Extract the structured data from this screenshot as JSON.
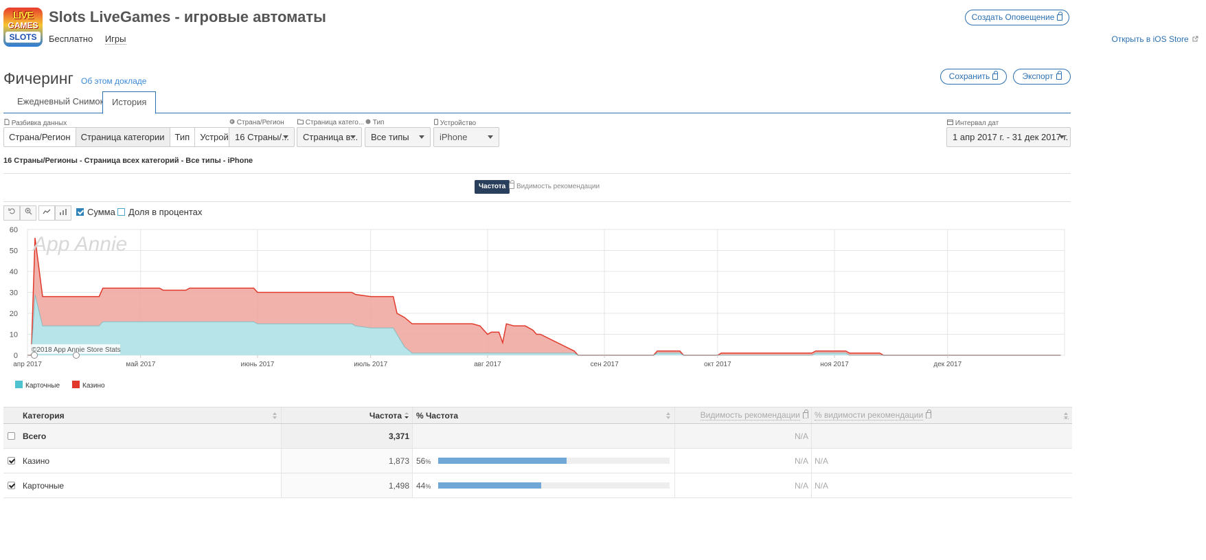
{
  "app": {
    "title": "Slots LiveGames - игровые автоматы",
    "price": "Бесплатно",
    "category": "Игры",
    "icon_top": "LIVE",
    "icon_mid": "GAMES",
    "icon_bottom": "SLOTS",
    "create_alert": "Создать Оповещение",
    "open_ios": "Открыть в iOS Store"
  },
  "section": {
    "title": "Фичеринг",
    "about": "Об этом докладе",
    "save": "Сохранить",
    "export": "Экспорт"
  },
  "tabs": [
    "Ежедневный Снимок",
    "История"
  ],
  "filters": {
    "breakdown_label": "Разбивка данных",
    "breakdown": [
      "Страна/Регион",
      "Страница категории",
      "Тип",
      "Устройство"
    ],
    "country_label": "Страна/Регион",
    "country_value": "16 Страны/...",
    "catpage_label": "Страница катего...",
    "catpage_value": "Страница в...",
    "type_label": "Тип",
    "type_value": "Все типы",
    "device_label": "Устройство",
    "device_value": "iPhone",
    "date_label": "Интервал дат",
    "date_value": "1 апр 2017 г. - 31 дек 2017 г."
  },
  "subtitle": "16 Страны/Регионы - Страница всех категорий - Все типы - iPhone",
  "metrics": {
    "active": "Частота",
    "inactive": "Видимость рекомендации"
  },
  "toolbar": {
    "sum": "Сумма",
    "percent": "Доля в процентах"
  },
  "colors": {
    "casino": "#e0392b",
    "card": "#4ec3cf",
    "accent": "#2a6fb0"
  },
  "chart_data": {
    "type": "area",
    "stacked": true,
    "ylim": [
      0,
      60
    ],
    "yticks": [
      0,
      10,
      20,
      30,
      40,
      50,
      60
    ],
    "xticks": [
      "апр 2017",
      "май 2017",
      "июнь 2017",
      "июль 2017",
      "авг 2017",
      "сен 2017",
      "окт 2017",
      "ноя 2017",
      "дек 2017"
    ],
    "watermark": "App Annie",
    "credit": "©2018 App Annie Store Stats",
    "x_start": "2017-04-01",
    "series": [
      {
        "name": "Карточные",
        "points": [
          [
            "2017-04-01",
            0
          ],
          [
            "2017-04-02",
            0
          ],
          [
            "2017-04-03",
            29
          ],
          [
            "2017-04-05",
            14
          ],
          [
            "2017-04-20",
            14
          ],
          [
            "2017-04-21",
            16
          ],
          [
            "2017-05-31",
            16
          ],
          [
            "2017-06-01",
            15
          ],
          [
            "2017-06-26",
            15
          ],
          [
            "2017-06-27",
            14
          ],
          [
            "2017-07-01",
            13
          ],
          [
            "2017-07-07",
            13
          ],
          [
            "2017-07-08",
            10
          ],
          [
            "2017-07-10",
            4
          ],
          [
            "2017-07-12",
            1
          ],
          [
            "2017-08-24",
            1
          ],
          [
            "2017-08-25",
            0
          ],
          [
            "2017-09-14",
            0
          ],
          [
            "2017-09-15",
            1
          ],
          [
            "2017-09-21",
            1
          ],
          [
            "2017-09-22",
            0
          ],
          [
            "2017-10-26",
            0
          ],
          [
            "2017-10-27",
            1
          ],
          [
            "2017-11-04",
            1
          ],
          [
            "2017-11-05",
            0
          ],
          [
            "2017-12-31",
            0
          ]
        ]
      },
      {
        "name": "Казино",
        "points": [
          [
            "2017-04-01",
            0
          ],
          [
            "2017-04-02",
            0
          ],
          [
            "2017-04-03",
            27
          ],
          [
            "2017-04-05",
            14
          ],
          [
            "2017-04-20",
            14
          ],
          [
            "2017-04-21",
            16
          ],
          [
            "2017-05-06",
            16
          ],
          [
            "2017-05-07",
            15
          ],
          [
            "2017-05-13",
            15
          ],
          [
            "2017-05-14",
            16
          ],
          [
            "2017-05-31",
            16
          ],
          [
            "2017-06-01",
            15
          ],
          [
            "2017-06-26",
            15
          ],
          [
            "2017-06-27",
            15
          ],
          [
            "2017-07-01",
            15
          ],
          [
            "2017-07-07",
            15
          ],
          [
            "2017-07-08",
            10
          ],
          [
            "2017-07-10",
            14
          ],
          [
            "2017-07-12",
            14
          ],
          [
            "2017-07-28",
            14
          ],
          [
            "2017-07-30",
            13
          ],
          [
            "2017-08-01",
            9
          ],
          [
            "2017-08-02",
            10
          ],
          [
            "2017-08-04",
            10
          ],
          [
            "2017-08-05",
            5
          ],
          [
            "2017-08-06",
            14
          ],
          [
            "2017-08-08",
            13
          ],
          [
            "2017-08-11",
            13
          ],
          [
            "2017-08-13",
            11
          ],
          [
            "2017-08-14",
            9
          ],
          [
            "2017-08-15",
            9
          ],
          [
            "2017-08-24",
            1
          ],
          [
            "2017-08-25",
            0
          ],
          [
            "2017-09-14",
            0
          ],
          [
            "2017-09-15",
            1
          ],
          [
            "2017-09-21",
            1
          ],
          [
            "2017-09-22",
            0
          ],
          [
            "2017-10-01",
            0
          ],
          [
            "2017-10-02",
            1
          ],
          [
            "2017-10-26",
            1
          ],
          [
            "2017-10-27",
            1
          ],
          [
            "2017-11-04",
            1
          ],
          [
            "2017-11-05",
            1
          ],
          [
            "2017-11-13",
            1
          ],
          [
            "2017-11-14",
            0
          ],
          [
            "2017-12-31",
            0
          ]
        ]
      }
    ]
  },
  "legend": [
    "Карточные",
    "Казино"
  ],
  "table": {
    "headers": {
      "category": "Категория",
      "freq": "Частота",
      "pct": "% Частота",
      "vis": "Видимость рекомендации",
      "pvis": "% видимости рекомендации"
    },
    "total": {
      "label": "Всего",
      "freq": "3,371",
      "vis": "N/A"
    },
    "rows": [
      {
        "label": "Казино",
        "freq": "1,873",
        "pct": "56",
        "pct_value": 0.556,
        "vis": "N/A",
        "pvis": "N/A"
      },
      {
        "label": "Карточные",
        "freq": "1,498",
        "pct": "44",
        "pct_value": 0.444,
        "vis": "N/A",
        "pvis": "N/A"
      }
    ]
  }
}
